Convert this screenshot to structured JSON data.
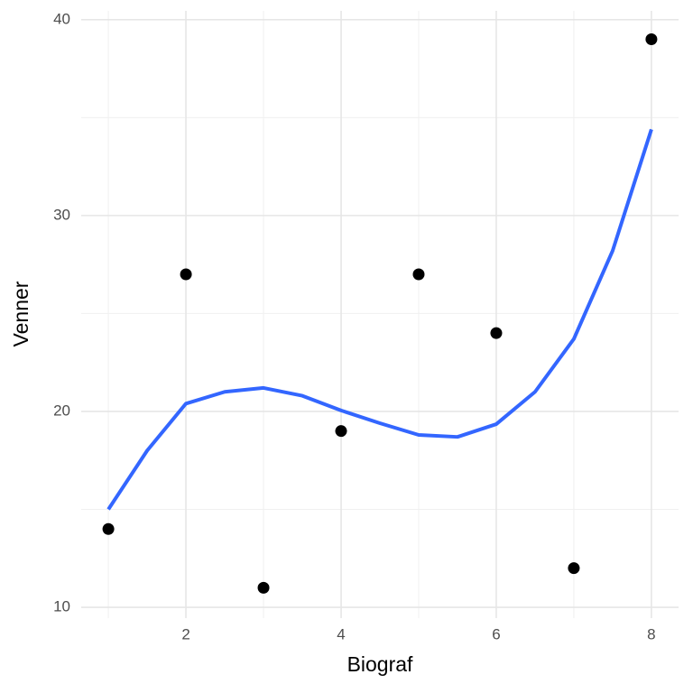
{
  "chart_data": {
    "type": "scatter",
    "x_label": "Biograf",
    "y_label": "Venner",
    "x": [
      1,
      2,
      3,
      4,
      5,
      6,
      7,
      8
    ],
    "values": [
      14,
      27,
      11,
      19,
      27,
      24,
      12,
      39
    ],
    "color": "#000000",
    "fit": {
      "color": "#3366ff",
      "x": [
        1,
        1.5,
        2,
        2.5,
        3,
        3.5,
        4,
        4.5,
        5,
        5.5,
        6,
        6.5,
        7,
        7.5,
        8
      ],
      "values": [
        15.0,
        18.0,
        20.4,
        21.0,
        21.2,
        20.8,
        20.05,
        19.4,
        18.8,
        18.7,
        19.35,
        21.0,
        23.7,
        28.2,
        34.4
      ]
    },
    "xlim": [
      0.65,
      8.35
    ],
    "ylim": [
      9.45,
      40.45
    ],
    "xticks": [
      2,
      4,
      6,
      8
    ],
    "yticks": [
      10,
      20,
      30,
      40
    ],
    "xminor": [
      1,
      3,
      5,
      7
    ],
    "yminor": [
      15,
      25,
      35
    ],
    "grid": true
  }
}
